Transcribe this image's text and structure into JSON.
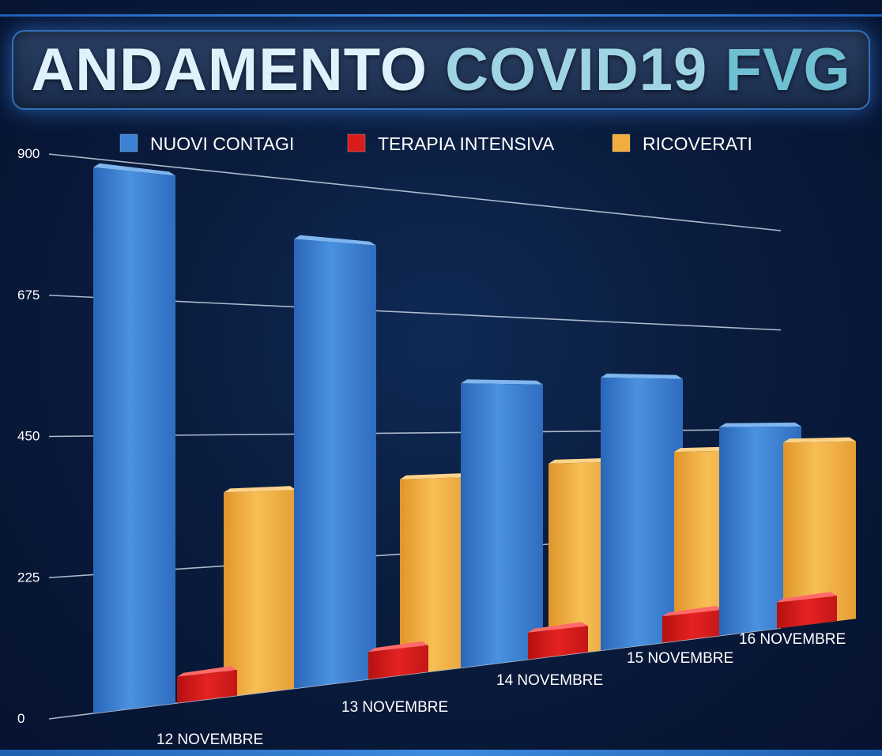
{
  "title": {
    "part1": "ANDAMENTO",
    "part2": "COVID19",
    "part3": "FVG"
  },
  "chart_data": {
    "type": "bar",
    "categories": [
      "12 NOVEMBRE",
      "13 NOVEMBRE",
      "14 NOVEMBRE",
      "15 NOVEMBRE",
      "16 NOVEMBRE"
    ],
    "series": [
      {
        "name": "NUOVI CONTAGI",
        "color": "#3c82d4",
        "values": [
          886,
          795,
          544,
          560,
          456
        ]
      },
      {
        "name": "TERAPIA INTENSIVA",
        "color": "#d91c1c",
        "values": [
          44,
          50,
          53,
          56,
          59
        ]
      },
      {
        "name": "RICOVERATI",
        "color": "#f2ad3e",
        "values": [
          351,
          364,
          386,
          404,
          420
        ]
      }
    ],
    "yticks": [
      0,
      225,
      450,
      675,
      900
    ],
    "ylim": [
      0,
      900
    ],
    "grid": true,
    "legend_position": "top"
  }
}
